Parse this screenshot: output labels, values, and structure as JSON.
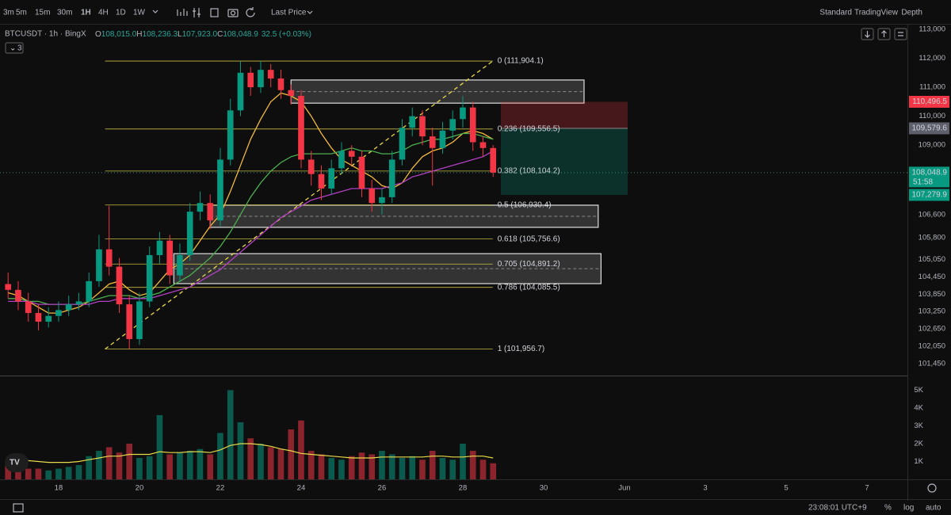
{
  "ui": {
    "intervals": [
      "3m",
      "5m",
      "15m",
      "30m",
      "1H",
      "4H",
      "1D",
      "1W"
    ],
    "price_source": "Last Price",
    "views": [
      "Standard",
      "TradingView",
      "Depth"
    ],
    "symbol": "BTCUSDT · 1h · BingX",
    "ohlc": [
      {
        "key": "O",
        "value": "108,015.0"
      },
      {
        "key": "H",
        "value": "108,236.3"
      },
      {
        "key": "L",
        "value": "107,923.0"
      },
      {
        "key": "C",
        "value": "108,048.9"
      }
    ],
    "change": "32.5 (+0.03%)",
    "indicator_count": "3",
    "clock": "23:08:01 UTC+9",
    "footer_buttons": [
      "%",
      "log",
      "auto"
    ]
  },
  "chart_data": {
    "type": "candlestick",
    "xlim": [
      16.55,
      39.0
    ],
    "ylim": [
      101094,
      113192
    ],
    "xticks": [
      18,
      20,
      22,
      24,
      26,
      28,
      30,
      {
        "value": 32,
        "label": "Jun"
      },
      {
        "value": 34,
        "label": "3"
      },
      {
        "value": 36,
        "label": "5"
      },
      {
        "value": 38,
        "label": "7"
      }
    ],
    "yticks": [
      {
        "value": 113000,
        "label": "113,000"
      },
      {
        "value": 112000,
        "label": "112,000"
      },
      {
        "value": 111000,
        "label": "111,000"
      },
      {
        "value": 110000,
        "label": "110,000"
      },
      {
        "value": 109000,
        "label": "109,000"
      },
      {
        "value": 106600,
        "label": "106,600"
      },
      {
        "value": 105800,
        "label": "105,800"
      },
      {
        "value": 105050,
        "label": "105,050"
      },
      {
        "value": 104450,
        "label": "104,450"
      },
      {
        "value": 103850,
        "label": "103,850"
      },
      {
        "value": 103250,
        "label": "103,250"
      },
      {
        "value": 102650,
        "label": "102,650"
      },
      {
        "value": 102050,
        "label": "102,050"
      },
      {
        "value": 101450,
        "label": "101,450"
      }
    ],
    "up_color": "#089981",
    "down_color": "#f23645",
    "candles": {
      "x": [
        16.75,
        17,
        17.25,
        17.5,
        17.75,
        18,
        18.25,
        18.5,
        18.75,
        19,
        19.25,
        19.5,
        19.75,
        20,
        20.25,
        20.5,
        20.75,
        21,
        21.25,
        21.5,
        21.75,
        22,
        22.25,
        22.5,
        22.75,
        23,
        23.25,
        23.5,
        23.75,
        24,
        24.25,
        24.5,
        24.75,
        25,
        25.25,
        25.5,
        25.75,
        26,
        26.25,
        26.5,
        26.75,
        27,
        27.25,
        27.5,
        27.75,
        28,
        28.25,
        28.5,
        28.75
      ],
      "open": [
        104200,
        104000,
        103600,
        103200,
        102900,
        103100,
        103300,
        103500,
        103600,
        104300,
        105400,
        104800,
        103500,
        102300,
        103600,
        105200,
        105700,
        104500,
        105200,
        106700,
        107000,
        106400,
        108500,
        110200,
        111500,
        111000,
        111600,
        111300,
        110900,
        110700,
        108500,
        108000,
        107500,
        108200,
        108800,
        108600,
        107500,
        107000,
        107200,
        108500,
        109600,
        110000,
        109300,
        108900,
        109500,
        109900,
        110300,
        109100,
        108900
      ],
      "high": [
        104600,
        104300,
        103900,
        103500,
        103400,
        103600,
        103800,
        103900,
        104600,
        105900,
        106900,
        105100,
        103800,
        103900,
        105500,
        106000,
        105900,
        105600,
        107000,
        107400,
        107300,
        108900,
        110600,
        111900,
        111700,
        111904,
        111800,
        111600,
        111100,
        110900,
        108800,
        108300,
        108500,
        109100,
        109000,
        108800,
        107800,
        107500,
        108800,
        109900,
        110300,
        110200,
        109600,
        109800,
        110200,
        110700,
        110500,
        109300,
        109000
      ],
      "low": [
        103700,
        103300,
        102900,
        102600,
        102700,
        102900,
        103100,
        103300,
        103400,
        104100,
        104500,
        103200,
        101960,
        102100,
        103400,
        104900,
        104200,
        104300,
        105000,
        106400,
        106100,
        106200,
        108300,
        110000,
        110700,
        110800,
        111000,
        110600,
        110400,
        108200,
        107600,
        107100,
        107300,
        108000,
        108300,
        107200,
        106700,
        106600,
        107000,
        108300,
        109300,
        109000,
        107600,
        108700,
        109200,
        109600,
        108800,
        108600,
        107900
      ],
      "close": [
        104000,
        103600,
        103200,
        102900,
        103100,
        103300,
        103500,
        103600,
        104300,
        105400,
        104800,
        103500,
        102300,
        103600,
        105200,
        105700,
        104500,
        105200,
        106700,
        107000,
        106400,
        108500,
        110200,
        111500,
        111000,
        111600,
        111300,
        110900,
        110700,
        108500,
        108000,
        107500,
        108200,
        108800,
        108600,
        107500,
        107000,
        107200,
        108500,
        109600,
        110000,
        109300,
        108900,
        109500,
        109900,
        110300,
        109100,
        108900,
        108048.9
      ]
    },
    "series": [
      {
        "color": "#f2b93b",
        "values": [
          103900,
          103800,
          103600,
          103400,
          103200,
          103200,
          103300,
          103400,
          103600,
          103900,
          104200,
          104300,
          104000,
          103800,
          103900,
          104300,
          104700,
          104900,
          105200,
          105700,
          106200,
          106600,
          107400,
          108300,
          109200,
          109900,
          110500,
          110800,
          110700,
          110500,
          110000,
          109400,
          108900,
          108500,
          108300,
          108100,
          107900,
          107600,
          107500,
          107700,
          108200,
          108600,
          108800,
          108900,
          109100,
          109400,
          109500,
          109400,
          109200
        ]
      },
      {
        "color": "#4caf50",
        "values": [
          103700,
          103700,
          103600,
          103600,
          103500,
          103500,
          103500,
          103500,
          103600,
          103700,
          103800,
          103800,
          103800,
          103700,
          103800,
          103900,
          104100,
          104300,
          104500,
          104800,
          105100,
          105500,
          106000,
          106600,
          107200,
          107700,
          108100,
          108400,
          108600,
          108700,
          108700,
          108700,
          108700,
          108800,
          108900,
          108800,
          108800,
          108700,
          108700,
          108800,
          109000,
          109100,
          109200,
          109200,
          109300,
          109400,
          109400,
          109300,
          109200
        ]
      },
      {
        "color": "#b23fc4",
        "values": [
          103600,
          103600,
          103600,
          103500,
          103500,
          103500,
          103500,
          103500,
          103500,
          103600,
          103600,
          103700,
          103700,
          103700,
          103700,
          103800,
          103900,
          104000,
          104100,
          104300,
          104500,
          104700,
          105000,
          105300,
          105600,
          105900,
          106200,
          106500,
          106700,
          106900,
          107100,
          107200,
          107300,
          107400,
          107500,
          107500,
          107500,
          107500,
          107600,
          107700,
          107900,
          108000,
          108100,
          108200,
          108300,
          108400,
          108500,
          108600,
          108800
        ]
      }
    ],
    "last_price_label": "108,048.9",
    "countdown": "51:58",
    "fib": {
      "color": "#e8d94a",
      "x": [
        19.15,
        28.74
      ],
      "levels": [
        {
          "label": "0 (111,904.1)",
          "value": 111904.1
        },
        {
          "label": "0.236 (109,556.5)",
          "value": 109556.5
        },
        {
          "label": "0.382 (108,104.2)",
          "value": 108104.2
        },
        {
          "label": "0.5 (106,930.4)",
          "value": 106930.4
        },
        {
          "label": "0.618 (105,756.6)",
          "value": 105756.6
        },
        {
          "label": "0.705 (104,891.2)",
          "value": 104891.2
        },
        {
          "label": "0.786 (104,085.5)",
          "value": 104085.5
        },
        {
          "label": "1 (101,956.7)",
          "value": 101956.7
        }
      ]
    },
    "zones": [
      {
        "x": [
          23.75,
          31.0
        ],
        "y": [
          110450,
          111250
        ]
      },
      {
        "x": [
          21.75,
          31.35
        ],
        "y": [
          106160,
          106925
        ]
      },
      {
        "x": [
          20.85,
          31.42
        ],
        "y": [
          104215,
          105250
        ]
      }
    ],
    "position": {
      "x": [
        28.94,
        32.08
      ],
      "stop": 110496.5,
      "stop_label": "110,496.5",
      "entry": 109579.6,
      "entry_label": "109,579.6",
      "target": 107279.9,
      "target_label": "107,279.9"
    },
    "volume": {
      "ylim": [
        0,
        5550
      ],
      "yticks": [
        {
          "value": 1000,
          "label": "1K"
        },
        {
          "value": 2000,
          "label": "2K"
        },
        {
          "value": 3000,
          "label": "3K"
        },
        {
          "value": 4000,
          "label": "4K"
        },
        {
          "value": 5000,
          "label": "5K"
        }
      ],
      "values": [
        800,
        700,
        600,
        600,
        500,
        600,
        700,
        800,
        1300,
        1600,
        1800,
        1500,
        2000,
        1200,
        1300,
        3600,
        1400,
        1500,
        1600,
        1700,
        1400,
        2600,
        5000,
        3200,
        2300,
        2000,
        1800,
        1700,
        2800,
        3300,
        1600,
        1400,
        1200,
        1100,
        1300,
        1500,
        1400,
        1600,
        1400,
        1200,
        1300,
        1100,
        1600,
        1200,
        1100,
        2000,
        1600,
        1100,
        900
      ],
      "ma": {
        "color": "#e8d94a",
        "values": [
          1100,
          1100,
          1050,
          1000,
          950,
          950,
          950,
          1000,
          1100,
          1200,
          1300,
          1300,
          1400,
          1400,
          1400,
          1550,
          1500,
          1500,
          1550,
          1550,
          1500,
          1650,
          1900,
          2000,
          2000,
          1950,
          1850,
          1700,
          1600,
          1450,
          1400,
          1350,
          1300,
          1250,
          1200,
          1200,
          1200,
          1250,
          1250,
          1250,
          1250,
          1250,
          1300,
          1300,
          1250,
          1250,
          1300,
          1300,
          1200
        ]
      }
    }
  }
}
